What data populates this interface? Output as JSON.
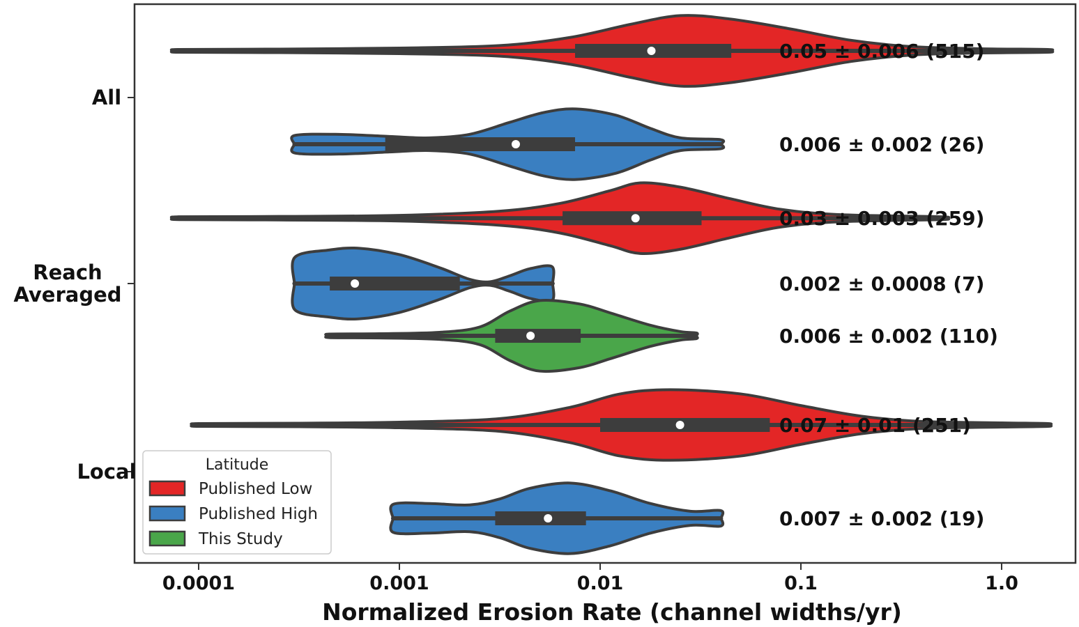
{
  "chart_data": {
    "type": "violin",
    "xlabel": "Normalized Erosion Rate (channel widths/yr)",
    "ylabel": "",
    "xscale": "log",
    "xlim": [
      4e-05,
      2.2
    ],
    "xticks": [
      {
        "value": 0.0001,
        "label": "0.0001"
      },
      {
        "value": 0.001,
        "label": "0.001"
      },
      {
        "value": 0.01,
        "label": "0.01"
      },
      {
        "value": 0.1,
        "label": "0.1"
      },
      {
        "value": 1.0,
        "label": "1.0"
      }
    ],
    "categories": [
      "All",
      "Reach\nAveraged",
      "Local"
    ],
    "legend": {
      "title": "Latitude",
      "placement": "lower-left",
      "entries": [
        {
          "name": "Published Low",
          "color": "#e32626"
        },
        {
          "name": "Published High",
          "color": "#3a7fc1"
        },
        {
          "name": "This Study",
          "color": "#4aa64a"
        }
      ]
    },
    "violins": [
      {
        "category": "All",
        "series": "Published Low",
        "color": "#e32626",
        "slot": 0.25,
        "min": 8e-05,
        "max": 1.7,
        "q1": 0.0075,
        "q3": 0.045,
        "median": 0.018,
        "halfwidth": 0.42,
        "profile": [
          [
            -4.1,
            0.04
          ],
          [
            -3.6,
            0.05
          ],
          [
            -3.0,
            0.08
          ],
          [
            -2.5,
            0.15
          ],
          [
            -2.15,
            0.38
          ],
          [
            -1.85,
            0.75
          ],
          [
            -1.6,
            1.0
          ],
          [
            -1.35,
            0.9
          ],
          [
            -1.05,
            0.62
          ],
          [
            -0.75,
            0.3
          ],
          [
            -0.45,
            0.12
          ],
          [
            -0.1,
            0.06
          ],
          [
            0.23,
            0.04
          ]
        ],
        "annotation": "0.05 ± 0.006 (515)"
      },
      {
        "category": "All",
        "series": "Published High",
        "color": "#3a7fc1",
        "slot": -0.25,
        "min": 0.0003,
        "max": 0.04,
        "q1": 0.00085,
        "q3": 0.0075,
        "median": 0.0038,
        "halfwidth": 0.42,
        "profile": [
          [
            -3.52,
            0.25
          ],
          [
            -3.3,
            0.28
          ],
          [
            -3.05,
            0.22
          ],
          [
            -2.85,
            0.18
          ],
          [
            -2.65,
            0.28
          ],
          [
            -2.45,
            0.62
          ],
          [
            -2.28,
            0.9
          ],
          [
            -2.12,
            1.0
          ],
          [
            -1.92,
            0.82
          ],
          [
            -1.75,
            0.45
          ],
          [
            -1.6,
            0.18
          ],
          [
            -1.4,
            0.13
          ]
        ],
        "annotation": "0.006 ± 0.002 (26)"
      },
      {
        "category": "Reach\nAveraged",
        "series": "Published Low",
        "color": "#e32626",
        "slot": 0.35,
        "min": 8e-05,
        "max": 0.5,
        "q1": 0.0065,
        "q3": 0.032,
        "median": 0.015,
        "halfwidth": 0.42,
        "profile": [
          [
            -4.1,
            0.04
          ],
          [
            -3.6,
            0.05
          ],
          [
            -3.0,
            0.08
          ],
          [
            -2.5,
            0.2
          ],
          [
            -2.2,
            0.42
          ],
          [
            -1.95,
            0.78
          ],
          [
            -1.8,
            1.0
          ],
          [
            -1.6,
            0.88
          ],
          [
            -1.35,
            0.55
          ],
          [
            -1.1,
            0.25
          ],
          [
            -0.8,
            0.1
          ],
          [
            -0.3,
            0.04
          ]
        ],
        "annotation": "0.03 ± 0.003 (259)"
      },
      {
        "category": "Reach\nAveraged",
        "series": "Published High",
        "color": "#3a7fc1",
        "slot": 0.0,
        "min": 0.0003,
        "max": 0.0058,
        "q1": 0.00045,
        "q3": 0.002,
        "median": 0.0006,
        "halfwidth": 0.42,
        "profile": [
          [
            -3.52,
            0.75
          ],
          [
            -3.35,
            0.95
          ],
          [
            -3.2,
            1.0
          ],
          [
            -3.0,
            0.82
          ],
          [
            -2.8,
            0.45
          ],
          [
            -2.65,
            0.12
          ],
          [
            -2.55,
            0.05
          ],
          [
            -2.45,
            0.22
          ],
          [
            -2.35,
            0.42
          ],
          [
            -2.24,
            0.48
          ]
        ],
        "annotation": "0.002 ± 0.0008 (7)"
      },
      {
        "category": "Reach\nAveraged",
        "series": "This Study",
        "color": "#4aa64a",
        "slot": -0.28,
        "min": 0.00045,
        "max": 0.03,
        "q1": 0.003,
        "q3": 0.008,
        "median": 0.0045,
        "halfwidth": 0.42,
        "profile": [
          [
            -3.35,
            0.05
          ],
          [
            -3.1,
            0.06
          ],
          [
            -2.8,
            0.1
          ],
          [
            -2.6,
            0.25
          ],
          [
            -2.45,
            0.7
          ],
          [
            -2.3,
            1.0
          ],
          [
            -2.1,
            0.9
          ],
          [
            -1.95,
            0.65
          ],
          [
            -1.75,
            0.3
          ],
          [
            -1.6,
            0.12
          ],
          [
            -1.52,
            0.08
          ]
        ],
        "annotation": "0.006 ± 0.002 (110)"
      },
      {
        "category": "Local",
        "series": "Published Low",
        "color": "#e32626",
        "slot": 0.25,
        "min": 0.0001,
        "max": 1.7,
        "q1": 0.01,
        "q3": 0.07,
        "median": 0.025,
        "halfwidth": 0.42,
        "profile": [
          [
            -4.0,
            0.04
          ],
          [
            -3.5,
            0.05
          ],
          [
            -3.0,
            0.08
          ],
          [
            -2.5,
            0.18
          ],
          [
            -2.15,
            0.5
          ],
          [
            -1.9,
            0.88
          ],
          [
            -1.65,
            1.0
          ],
          [
            -1.3,
            0.88
          ],
          [
            -1.0,
            0.55
          ],
          [
            -0.7,
            0.25
          ],
          [
            -0.4,
            0.1
          ],
          [
            0.0,
            0.06
          ],
          [
            0.23,
            0.04
          ]
        ],
        "annotation": "0.07 ± 0.01 (251)"
      },
      {
        "category": "Local",
        "series": "Published High",
        "color": "#3a7fc1",
        "slot": -0.25,
        "min": 0.00093,
        "max": 0.04,
        "q1": 0.003,
        "q3": 0.0085,
        "median": 0.0055,
        "halfwidth": 0.42,
        "profile": [
          [
            -3.03,
            0.4
          ],
          [
            -2.85,
            0.42
          ],
          [
            -2.65,
            0.38
          ],
          [
            -2.5,
            0.55
          ],
          [
            -2.35,
            0.85
          ],
          [
            -2.15,
            1.0
          ],
          [
            -1.95,
            0.78
          ],
          [
            -1.75,
            0.42
          ],
          [
            -1.55,
            0.2
          ],
          [
            -1.4,
            0.22
          ]
        ],
        "annotation": "0.007 ± 0.002 (19)"
      }
    ],
    "grid": false
  }
}
